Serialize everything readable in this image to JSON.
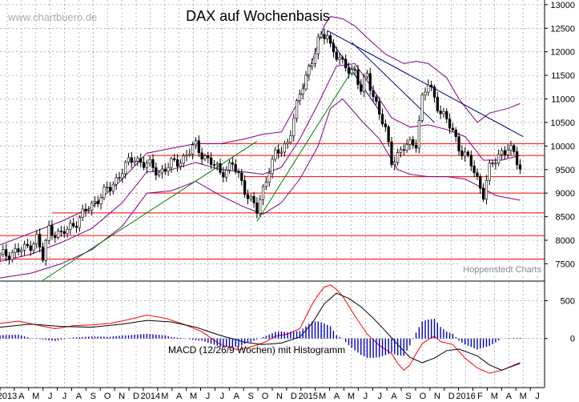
{
  "chart_data": {
    "type": "candlestick",
    "title": "DAX auf Wochenbasis",
    "watermark": "www.chartbuero.de",
    "credit": "Hoppenstedt Charts",
    "price_axis": {
      "ticks": [
        7500,
        8000,
        8500,
        9000,
        9500,
        10000,
        10500,
        11000,
        11500,
        12000,
        12500,
        13000
      ],
      "tick_labels": [
        "7500",
        "8000",
        "8500",
        "9000",
        "9500",
        "10000",
        "10500",
        "11000",
        "11500",
        "12000",
        "12500",
        "13000"
      ],
      "ylim": [
        7150,
        13100
      ]
    },
    "macd_panel": {
      "label": "MACD (12/26/9 Wochen) mit Histogramm",
      "ticks": [
        500,
        0
      ],
      "tick_labels": [
        "500",
        "0"
      ],
      "ylim": [
        -650,
        750
      ]
    },
    "x_axis": {
      "labels": [
        "2013",
        "A",
        "M",
        "J",
        "J",
        "A",
        "S",
        "O",
        "N",
        "D",
        "2014",
        "M",
        "A",
        "M",
        "J",
        "J",
        "A",
        "S",
        "O",
        "N",
        "D",
        "2015",
        "M",
        "A",
        "M",
        "J",
        "J",
        "A",
        "S",
        "O",
        "N",
        "D",
        "2016",
        "F",
        "M",
        "A",
        "M",
        "J"
      ],
      "start_week": 0,
      "end_week": 178
    },
    "horizontal_levels": [
      {
        "value": 10050,
        "x_start_week": 65
      },
      {
        "value": 9800,
        "x_start_week": 48
      },
      {
        "value": 9350,
        "x_start_week": 80
      },
      {
        "value": 9000,
        "x_start_week": 48
      },
      {
        "value": 8580,
        "x_start_week": 17
      },
      {
        "value": 8100,
        "x_start_week": 0
      },
      {
        "value": 7600,
        "x_start_week": 0
      }
    ],
    "trend_lines": [
      {
        "color": "#008000",
        "points": [
          [
            14,
            7150
          ],
          [
            84,
            10100
          ]
        ]
      },
      {
        "color": "#008000",
        "points": [
          [
            84,
            8400
          ],
          [
            116,
            11700
          ]
        ]
      },
      {
        "color": "#000080",
        "points": [
          [
            107,
            12450
          ],
          [
            171,
            10200
          ]
        ]
      },
      {
        "color": "#000080",
        "points": [
          [
            107,
            12350
          ],
          [
            124,
            10750
          ]
        ]
      },
      {
        "color": "#000080",
        "points": [
          [
            115,
            12200
          ],
          [
            142,
            10500
          ]
        ]
      }
    ],
    "series": [
      {
        "name": "close",
        "kind": "price",
        "x": [
          0,
          4,
          8,
          12,
          14,
          16,
          20,
          24,
          28,
          32,
          36,
          40,
          44,
          48,
          52,
          56,
          60,
          64,
          68,
          72,
          76,
          80,
          84,
          88,
          90,
          92,
          94,
          96,
          100,
          104,
          107,
          108,
          112,
          116,
          118,
          120,
          124,
          126,
          128,
          132,
          136,
          138,
          140,
          144,
          148,
          150,
          154,
          156,
          158,
          160,
          162,
          164,
          166,
          168,
          170
        ],
        "values": [
          7650,
          7750,
          7800,
          8050,
          7600,
          8250,
          8100,
          8350,
          8600,
          8900,
          9100,
          9500,
          9750,
          9600,
          9450,
          9600,
          9750,
          10000,
          9700,
          9450,
          9600,
          9100,
          8600,
          9550,
          9800,
          9900,
          10100,
          10600,
          11500,
          12200,
          12400,
          12150,
          11700,
          11600,
          11150,
          11500,
          10700,
          10300,
          9700,
          9950,
          10100,
          11000,
          11300,
          10750,
          10300,
          10000,
          9600,
          9300,
          9000,
          9500,
          9700,
          9900,
          9950,
          9800,
          9550
        ]
      },
      {
        "name": "upper_band",
        "kind": "price",
        "x": [
          0,
          10,
          20,
          30,
          40,
          48,
          56,
          64,
          72,
          80,
          86,
          92,
          98,
          102,
          106,
          108,
          112,
          116,
          120,
          126,
          132,
          136,
          140,
          146,
          150,
          156,
          160,
          166,
          170
        ],
        "values": [
          7900,
          8150,
          8400,
          8700,
          9300,
          9850,
          9950,
          10050,
          10050,
          10150,
          10250,
          10300,
          11000,
          11800,
          12550,
          12750,
          12700,
          12550,
          12300,
          11950,
          11750,
          11800,
          11750,
          11450,
          11000,
          10500,
          10700,
          10800,
          10900
        ]
      },
      {
        "name": "lower_band",
        "kind": "price",
        "x": [
          0,
          10,
          20,
          30,
          40,
          48,
          56,
          64,
          72,
          80,
          86,
          92,
          98,
          104,
          108,
          112,
          118,
          124,
          130,
          134,
          140,
          146,
          152,
          158,
          162,
          166,
          170
        ],
        "values": [
          7200,
          7300,
          7500,
          7800,
          8300,
          9000,
          9050,
          9250,
          8950,
          8700,
          8550,
          8800,
          9300,
          10000,
          10800,
          11000,
          10550,
          10150,
          9500,
          9400,
          9350,
          9350,
          9300,
          9100,
          8950,
          8900,
          8850
        ]
      },
      {
        "name": "ma_mid",
        "kind": "price",
        "x": [
          0,
          10,
          20,
          30,
          40,
          48,
          56,
          64,
          72,
          80,
          86,
          92,
          98,
          104,
          110,
          116,
          122,
          128,
          134,
          140,
          146,
          152,
          158,
          164,
          170
        ],
        "values": [
          7550,
          7700,
          7950,
          8250,
          8800,
          9450,
          9500,
          9650,
          9500,
          9450,
          9400,
          9550,
          10150,
          10900,
          11700,
          11750,
          11200,
          10600,
          10400,
          10450,
          10350,
          10200,
          9700,
          9700,
          9800
        ]
      },
      {
        "name": "macd",
        "kind": "macd",
        "x": [
          0,
          6,
          12,
          18,
          24,
          30,
          36,
          42,
          48,
          54,
          60,
          66,
          72,
          78,
          82,
          86,
          90,
          94,
          98,
          102,
          104,
          106,
          108,
          110,
          112,
          116,
          120,
          124,
          128,
          130,
          132,
          134,
          136,
          138,
          140,
          142,
          144,
          148,
          152,
          156,
          160,
          164,
          170
        ],
        "values": [
          200,
          230,
          180,
          130,
          170,
          180,
          200,
          250,
          310,
          270,
          190,
          90,
          -80,
          -150,
          -110,
          -60,
          30,
          60,
          130,
          450,
          580,
          680,
          710,
          650,
          560,
          300,
          60,
          -90,
          -200,
          -330,
          -420,
          -350,
          -200,
          -70,
          -10,
          30,
          -40,
          -80,
          -260,
          -390,
          -460,
          -420,
          -320
        ]
      },
      {
        "name": "signal",
        "kind": "macd",
        "x": [
          0,
          10,
          20,
          30,
          40,
          48,
          56,
          64,
          72,
          80,
          86,
          92,
          98,
          102,
          106,
          110,
          114,
          118,
          122,
          126,
          130,
          134,
          138,
          142,
          146,
          150,
          156,
          160,
          164,
          170
        ],
        "values": [
          150,
          190,
          160,
          150,
          190,
          240,
          220,
          150,
          40,
          -50,
          -80,
          -60,
          20,
          200,
          460,
          600,
          530,
          420,
          270,
          100,
          -80,
          -250,
          -320,
          -260,
          -160,
          -140,
          -230,
          -350,
          -420,
          -330
        ]
      }
    ]
  },
  "colors": {
    "price": "#000000",
    "bands": "#800080",
    "levels": "#ff0000",
    "macd": "#ff0000",
    "signal": "#000000",
    "histogram": "#0000c0",
    "grid": "#888888"
  }
}
